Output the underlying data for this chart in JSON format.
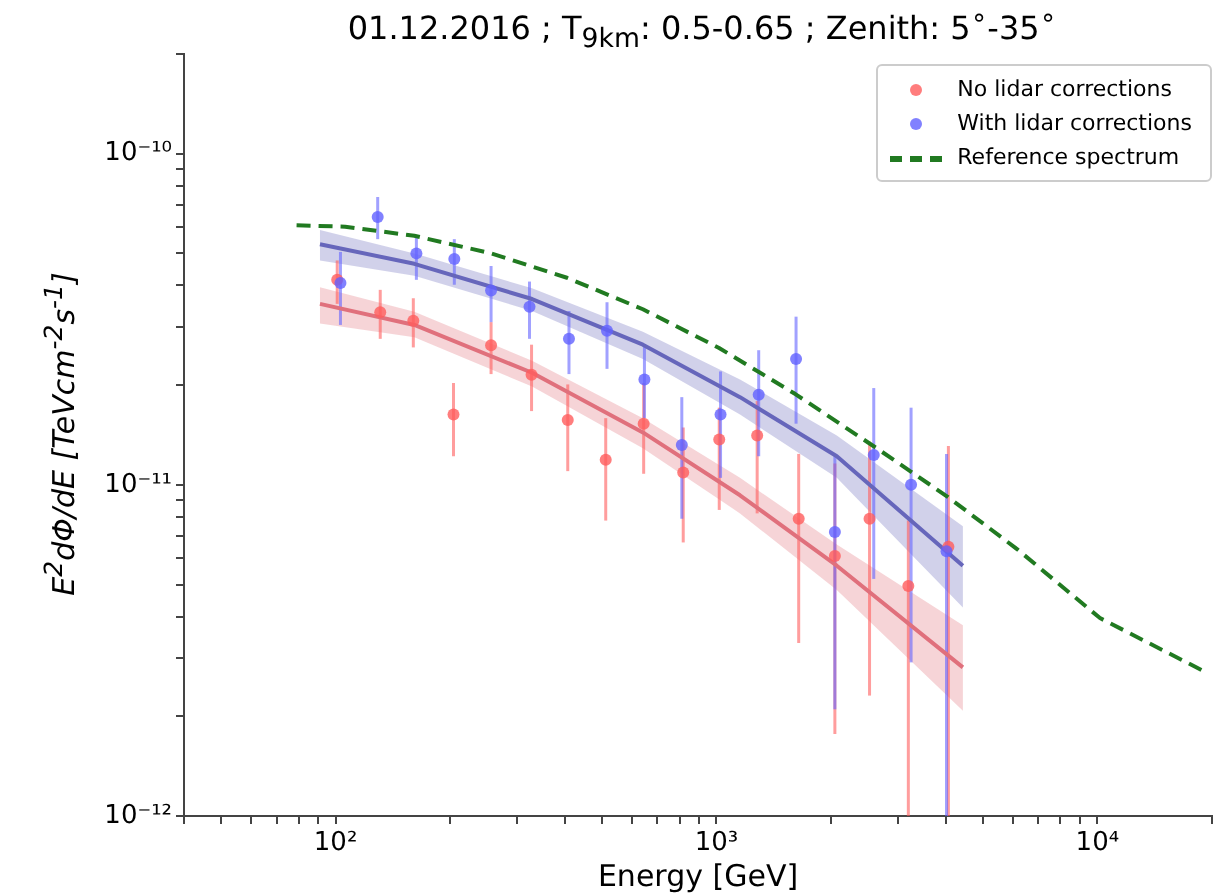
{
  "chart_data": {
    "type": "scatter",
    "title": "01.12.2016 ;  T$_{9km}$: 0.5-0.65 ; Zenith: 5$^{∘}$-35$^{∘}$",
    "xlabel": "Energy [GeV]",
    "ylabel": "E$^{2}$dΦ/dE [TeVcm$^{-2}$s$^{-1}$]",
    "log": "xy",
    "legend": "top right",
    "marker": "circle",
    "xlim": [
      40,
      20000
    ],
    "xticks": [
      {
        "value": 40,
        "label": null
      },
      {
        "value": 50,
        "label": null
      },
      {
        "value": 60,
        "label": null
      },
      {
        "value": 70,
        "label": null
      },
      {
        "value": 80,
        "label": null
      },
      {
        "value": 90,
        "label": null
      },
      {
        "value": 100,
        "label": "10²"
      },
      {
        "value": 200,
        "label": null
      },
      {
        "value": 300,
        "label": null
      },
      {
        "value": 400,
        "label": null
      },
      {
        "value": 500,
        "label": null
      },
      {
        "value": 600,
        "label": null
      },
      {
        "value": 700,
        "label": null
      },
      {
        "value": 800,
        "label": null
      },
      {
        "value": 900,
        "label": null
      },
      {
        "value": 1000,
        "label": "10³"
      },
      {
        "value": 2000,
        "label": null
      },
      {
        "value": 3000,
        "label": null
      },
      {
        "value": 4000,
        "label": null
      },
      {
        "value": 5000,
        "label": null
      },
      {
        "value": 6000,
        "label": null
      },
      {
        "value": 7000,
        "label": null
      },
      {
        "value": 8000,
        "label": null
      },
      {
        "value": 9000,
        "label": null
      },
      {
        "value": 10000,
        "label": "10⁴"
      },
      {
        "value": 20000,
        "label": null
      }
    ],
    "ylim": [
      1e-12,
      2e-10
    ],
    "yticks": [
      {
        "value": 1e-12,
        "label": "10⁻¹²"
      },
      {
        "value": 2e-12,
        "label": null
      },
      {
        "value": 3e-12,
        "label": null
      },
      {
        "value": 4e-12,
        "label": null
      },
      {
        "value": 5e-12,
        "label": null
      },
      {
        "value": 6e-12,
        "label": null
      },
      {
        "value": 7e-12,
        "label": null
      },
      {
        "value": 8e-12,
        "label": null
      },
      {
        "value": 9e-12,
        "label": null
      },
      {
        "value": 1e-11,
        "label": "10⁻¹¹"
      },
      {
        "value": 2e-11,
        "label": null
      },
      {
        "value": 3e-11,
        "label": null
      },
      {
        "value": 4e-11,
        "label": null
      },
      {
        "value": 5e-11,
        "label": null
      },
      {
        "value": 6e-11,
        "label": null
      },
      {
        "value": 7e-11,
        "label": null
      },
      {
        "value": 8e-11,
        "label": null
      },
      {
        "value": 9e-11,
        "label": null
      },
      {
        "value": 1e-10,
        "label": "10⁻¹⁰"
      },
      {
        "value": 2e-10,
        "label": null
      }
    ],
    "series": [
      {
        "type": "line",
        "color": "#e0707c",
        "marker": "none",
        "x": [
          91,
          161,
          328,
          641,
          1153,
          2070,
          4436
        ],
        "values": [
          3.52e-11,
          3.04e-11,
          2.18e-11,
          1.44e-11,
          9.3e-12,
          5.7e-12,
          2.81e-12
        ],
        "lower": [
          3.07e-11,
          2.79e-11,
          1.98e-11,
          1.29e-11,
          8.2e-12,
          4.81e-12,
          2.08e-12
        ],
        "upper": [
          3.95e-11,
          3.33e-11,
          2.37e-11,
          1.59e-11,
          1.05e-11,
          6.6e-12,
          3.77e-12
        ]
      },
      {
        "type": "line",
        "color": "#6666bb",
        "marker": "none",
        "x": [
          91,
          161,
          328,
          641,
          1153,
          2070,
          4436
        ],
        "values": [
          5.33e-11,
          4.65e-11,
          3.64e-11,
          2.65e-11,
          1.84e-11,
          1.22e-11,
          5.7e-12
        ],
        "lower": [
          4.76e-11,
          4.28e-11,
          3.35e-11,
          2.4e-11,
          1.63e-11,
          1.05e-11,
          4.26e-12
        ],
        "upper": [
          5.88e-11,
          5e-11,
          3.92e-11,
          2.9e-11,
          2.08e-11,
          1.41e-11,
          7.5e-12
        ]
      },
      {
        "name": "No lidar corrections",
        "color": "#ff5c5c",
        "x": [
          101,
          131,
          160,
          204,
          256,
          327,
          407,
          512,
          644,
          818,
          1017,
          1279,
          1644,
          2046,
          2523,
          3190,
          4064
        ],
        "values": [
          4.16e-11,
          3.32e-11,
          3.13e-11,
          1.63e-11,
          2.64e-11,
          2.15e-11,
          1.57e-11,
          1.19e-11,
          1.53e-11,
          1.09e-11,
          1.37e-11,
          1.41e-11,
          7.9e-12,
          6.1e-12,
          7.9e-12,
          4.95e-12,
          6.5e-12
        ],
        "errors": [
          [
            3.52e-11,
            4.76e-11
          ],
          [
            2.76e-11,
            3.88e-11
          ],
          [
            2.6e-11,
            3.66e-11
          ],
          [
            1.22e-11,
            2.03e-11
          ],
          [
            2.16e-11,
            3.1e-11
          ],
          [
            1.67e-11,
            2.65e-11
          ],
          [
            1.1e-11,
            2.01e-11
          ],
          [
            7.8e-12,
            1.59e-11
          ],
          [
            1.08e-11,
            2.03e-11
          ],
          [
            6.7e-12,
            1.49e-11
          ],
          [
            8.4e-12,
            1.71e-11
          ],
          [
            8.2e-12,
            1.79e-11
          ],
          [
            3.33e-12,
            1.24e-11
          ],
          [
            1.77e-12,
            1.16e-11
          ],
          [
            2.31e-12,
            1.35e-11
          ],
          [
            1e-12,
            7.8e-12
          ],
          [
            1e-12,
            1.31e-11
          ]
        ]
      },
      {
        "name": "With lidar corrections",
        "color": "#6262ff",
        "x": [
          103,
          129,
          163,
          205,
          256,
          323,
          410,
          516,
          647,
          811,
          1025,
          1291,
          1618,
          2046,
          2588,
          3243,
          4018
        ],
        "values": [
          4.07e-11,
          6.44e-11,
          5e-11,
          4.81e-11,
          3.86e-11,
          3.45e-11,
          2.76e-11,
          2.92e-11,
          2.08e-11,
          1.32e-11,
          1.63e-11,
          1.87e-11,
          2.4e-11,
          7.2e-12,
          1.23e-11,
          1e-11,
          6.3e-12
        ],
        "errors": [
          [
            3.04e-11,
            5.05e-11
          ],
          [
            5.52e-11,
            7.4e-11
          ],
          [
            4.16e-11,
            5.65e-11
          ],
          [
            4.02e-11,
            5.52e-11
          ],
          [
            3.1e-11,
            4.58e-11
          ],
          [
            2.76e-11,
            4.11e-11
          ],
          [
            2.16e-11,
            3.35e-11
          ],
          [
            2.24e-11,
            3.56e-11
          ],
          [
            1.59e-11,
            2.65e-11
          ],
          [
            7.9e-12,
            1.84e-11
          ],
          [
            1.05e-11,
            2.2e-11
          ],
          [
            1.22e-11,
            2.55e-11
          ],
          [
            1.53e-11,
            3.22e-11
          ],
          [
            2.1e-12,
            1.22e-11
          ],
          [
            5.2e-12,
            1.96e-11
          ],
          [
            2.91e-12,
            1.71e-11
          ],
          [
            1e-12,
            1.24e-11
          ]
        ]
      },
      {
        "name": "Reference spectrum",
        "type": "line",
        "color": "#217a21",
        "marker": "none",
        "line_style": "dashed",
        "x": [
          79,
          106,
          161,
          256,
          405,
          641,
          1016,
          1611,
          2661,
          4046,
          6152,
          10160,
          18880
        ],
        "values": [
          6.08e-11,
          6.02e-11,
          5.65e-11,
          5e-11,
          4.22e-11,
          3.39e-11,
          2.59e-11,
          1.88e-11,
          1.28e-11,
          9.2e-12,
          6.4e-12,
          3.96e-12,
          2.75e-12
        ]
      }
    ]
  }
}
